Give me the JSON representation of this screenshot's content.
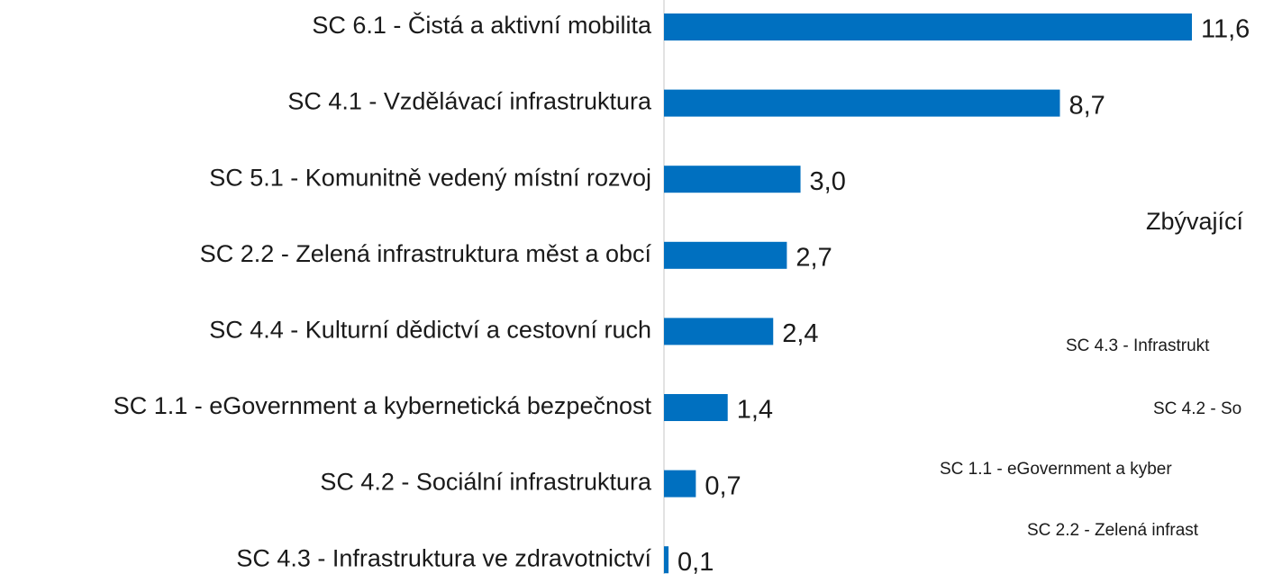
{
  "chart_data": {
    "type": "bar",
    "orientation": "horizontal",
    "color": "#0070c0",
    "categories": [
      "SC 6.1 - Čistá a aktivní mobilita",
      "SC 4.1 - Vzdělávací infrastruktura",
      "SC 5.1 - Komunitně vedený místní rozvoj",
      "SC 2.2 - Zelená infrastruktura měst a obcí",
      "SC 4.4 - Kulturní dědictví a cestovní ruch",
      "SC 1.1 - eGovernment a kybernetická bezpečnost",
      "SC 4.2 - Sociální infrastruktura",
      "SC 4.3 - Infrastruktura ve zdravotnictví"
    ],
    "values": [
      11.6,
      8.7,
      3.0,
      2.7,
      2.4,
      1.4,
      0.7,
      0.1
    ],
    "value_labels": [
      "11,6",
      "8,7",
      "3,0",
      "2,7",
      "2,4",
      "1,4",
      "0,7",
      "0,1"
    ]
  },
  "fragment": {
    "title": "Zbývající",
    "labels": [
      "SC 4.3 - Infrastrukt",
      "SC 4.2 - So",
      "SC 1.1 - eGovernment a kyber",
      "SC 2.2 - Zelená infrast"
    ]
  }
}
